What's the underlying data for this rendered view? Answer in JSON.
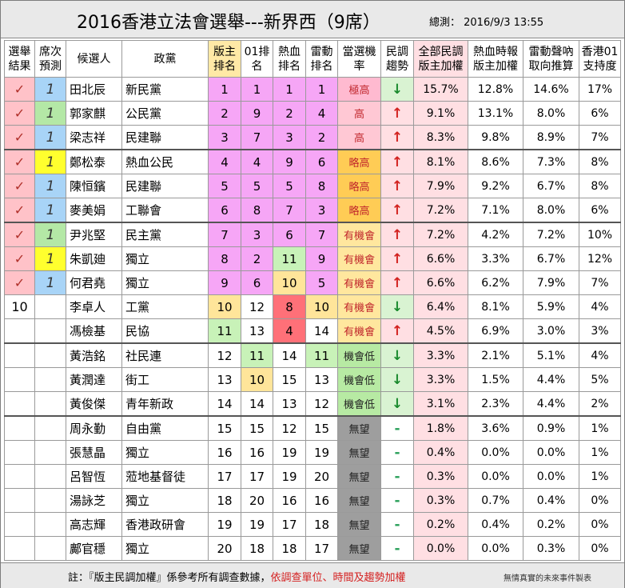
{
  "title": "2016香港立法會選舉---新界西（9席）",
  "subtitle": "總測： 2016/9/3 13:55",
  "headers": [
    "選舉結果",
    "席次預測",
    "候選人",
    "政黨",
    "版主排名",
    "01排名",
    "熱血排名",
    "雷動排名",
    "當選機率",
    "民調趨勢",
    "全部民調版主加權",
    "熱血時報版主加權",
    "雷動聲吶取向推算",
    "香港01支持度"
  ],
  "trend_symbols": {
    "up": "↑",
    "down": "↓",
    "flat": "-"
  },
  "colors": {
    "check_bg": "#ffc2c8",
    "seat_blue": "#a8d4f7",
    "seat_green": "#b4e8a6",
    "seat_yellow": "#ffff2e",
    "rank_pink": "#f6a6f6",
    "rank_green": "#c8f2b8",
    "rank_yellow": "#ffe59a",
    "rank_red": "#ff7078",
    "chance_very_high": "#ffbad0",
    "chance_high": "#ffc8d4",
    "chance_slightly_high": "#ffcc55",
    "chance_possible": "#ffe79e",
    "chance_low": "#b7eaa3",
    "chance_none": "#9e9e9e",
    "pct_bg": "#ffdfe3"
  },
  "rows": [
    {
      "result": "✓",
      "seat": "1",
      "seat_c": "blue",
      "name": "田北辰",
      "party": "新民黨",
      "r1": "1",
      "c1": "pink",
      "r2": "1",
      "c2": "pink",
      "r3": "1",
      "c3": "pink",
      "r4": "1",
      "c4": "pink",
      "chance": "極高",
      "ch": "very_high",
      "trend": "down",
      "p1": "15.7%",
      "p2": "12.8%",
      "p3": "14.6%",
      "p4": "17%"
    },
    {
      "result": "✓",
      "seat": "1",
      "seat_c": "green",
      "name": "郭家麒",
      "party": "公民黨",
      "r1": "2",
      "c1": "pink",
      "r2": "9",
      "c2": "pink",
      "r3": "2",
      "c3": "pink",
      "r4": "4",
      "c4": "pink",
      "chance": "高",
      "ch": "high",
      "trend": "up",
      "p1": "9.1%",
      "p2": "13.1%",
      "p3": "8.0%",
      "p4": "6%"
    },
    {
      "result": "✓",
      "seat": "1",
      "seat_c": "blue",
      "name": "梁志祥",
      "party": "民建聯",
      "r1": "3",
      "c1": "pink",
      "r2": "7",
      "c2": "pink",
      "r3": "3",
      "c3": "pink",
      "r4": "2",
      "c4": "pink",
      "chance": "高",
      "ch": "high",
      "trend": "up",
      "p1": "8.3%",
      "p2": "9.8%",
      "p3": "8.9%",
      "p4": "7%"
    },
    {
      "sep": true,
      "result": "✓",
      "seat": "1",
      "seat_c": "yellow",
      "name": "鄭松泰",
      "party": "熱血公民",
      "r1": "4",
      "c1": "pink",
      "r2": "4",
      "c2": "pink",
      "r3": "9",
      "c3": "pink",
      "r4": "6",
      "c4": "pink",
      "chance": "略高",
      "ch": "slightly_high",
      "trend": "up",
      "p1": "8.1%",
      "p2": "8.6%",
      "p3": "7.3%",
      "p4": "8%"
    },
    {
      "result": "✓",
      "seat": "1",
      "seat_c": "blue",
      "name": "陳恒鑌",
      "party": "民建聯",
      "r1": "5",
      "c1": "pink",
      "r2": "5",
      "c2": "pink",
      "r3": "5",
      "c3": "pink",
      "r4": "8",
      "c4": "pink",
      "chance": "略高",
      "ch": "slightly_high",
      "trend": "up",
      "p1": "7.9%",
      "p2": "9.2%",
      "p3": "6.7%",
      "p4": "8%"
    },
    {
      "result": "✓",
      "seat": "1",
      "seat_c": "blue",
      "name": "麥美娟",
      "party": "工聯會",
      "r1": "6",
      "c1": "pink",
      "r2": "8",
      "c2": "pink",
      "r3": "7",
      "c3": "pink",
      "r4": "3",
      "c4": "pink",
      "chance": "略高",
      "ch": "slightly_high",
      "trend": "up",
      "p1": "7.2%",
      "p2": "7.1%",
      "p3": "8.0%",
      "p4": "6%"
    },
    {
      "sep": true,
      "result": "✓",
      "seat": "1",
      "seat_c": "green",
      "name": "尹兆堅",
      "party": "民主黨",
      "r1": "7",
      "c1": "pink",
      "r2": "3",
      "c2": "pink",
      "r3": "6",
      "c3": "pink",
      "r4": "7",
      "c4": "pink",
      "chance": "有機會",
      "ch": "possible",
      "trend": "up",
      "p1": "7.2%",
      "p2": "4.2%",
      "p3": "7.2%",
      "p4": "10%"
    },
    {
      "result": "✓",
      "seat": "1",
      "seat_c": "yellow",
      "name": "朱凱廸",
      "party": "獨立",
      "r1": "8",
      "c1": "pink",
      "r2": "2",
      "c2": "pink",
      "r3": "11",
      "c3": "green",
      "r4": "9",
      "c4": "pink",
      "chance": "有機會",
      "ch": "possible",
      "trend": "up",
      "p1": "6.6%",
      "p2": "3.3%",
      "p3": "6.7%",
      "p4": "12%"
    },
    {
      "result": "✓",
      "seat": "1",
      "seat_c": "blue",
      "name": "何君堯",
      "party": "獨立",
      "r1": "9",
      "c1": "pink",
      "r2": "6",
      "c2": "pink",
      "r3": "10",
      "c3": "yellow",
      "r4": "5",
      "c4": "pink",
      "chance": "有機會",
      "ch": "possible",
      "trend": "up",
      "p1": "6.6%",
      "p2": "6.2%",
      "p3": "7.9%",
      "p4": "7%"
    },
    {
      "result": "10",
      "seat": "",
      "seat_c": "none",
      "name": "李卓人",
      "party": "工黨",
      "r1": "10",
      "c1": "yellow",
      "r2": "12",
      "c2": "none",
      "r3": "8",
      "c3": "red",
      "r4": "10",
      "c4": "yellow",
      "chance": "有機會",
      "ch": "possible",
      "trend": "down",
      "p1": "6.4%",
      "p2": "8.1%",
      "p3": "5.9%",
      "p4": "4%"
    },
    {
      "result": "",
      "seat": "",
      "seat_c": "none",
      "name": "馮檢基",
      "party": "民協",
      "r1": "11",
      "c1": "green",
      "r2": "13",
      "c2": "none",
      "r3": "4",
      "c3": "red",
      "r4": "14",
      "c4": "none",
      "chance": "有機會",
      "ch": "possible",
      "trend": "up",
      "p1": "4.5%",
      "p2": "6.9%",
      "p3": "3.0%",
      "p4": "3%"
    },
    {
      "sep": true,
      "result": "",
      "seat": "",
      "seat_c": "none",
      "name": "黃浩銘",
      "party": "社民連",
      "r1": "12",
      "c1": "none",
      "r2": "11",
      "c2": "green",
      "r3": "14",
      "c3": "none",
      "r4": "11",
      "c4": "green",
      "chance": "機會低",
      "ch": "low",
      "trend": "down",
      "p1": "3.3%",
      "p2": "2.1%",
      "p3": "5.1%",
      "p4": "4%"
    },
    {
      "result": "",
      "seat": "",
      "seat_c": "none",
      "name": "黃潤達",
      "party": "街工",
      "r1": "13",
      "c1": "none",
      "r2": "10",
      "c2": "yellow",
      "r3": "15",
      "c3": "none",
      "r4": "13",
      "c4": "none",
      "chance": "機會低",
      "ch": "low",
      "trend": "down",
      "p1": "3.3%",
      "p2": "1.5%",
      "p3": "4.4%",
      "p4": "5%"
    },
    {
      "result": "",
      "seat": "",
      "seat_c": "none",
      "name": "黃俊傑",
      "party": "青年新政",
      "r1": "14",
      "c1": "none",
      "r2": "14",
      "c2": "none",
      "r3": "13",
      "c3": "none",
      "r4": "12",
      "c4": "none",
      "chance": "機會低",
      "ch": "low",
      "trend": "down",
      "p1": "3.1%",
      "p2": "2.3%",
      "p3": "4.4%",
      "p4": "2%"
    },
    {
      "sep": true,
      "result": "",
      "seat": "",
      "seat_c": "none",
      "name": "周永勤",
      "party": "自由黨",
      "r1": "15",
      "c1": "none",
      "r2": "15",
      "c2": "none",
      "r3": "12",
      "c3": "none",
      "r4": "15",
      "c4": "none",
      "chance": "無望",
      "ch": "none",
      "trend": "flat",
      "p1": "1.8%",
      "p2": "3.6%",
      "p3": "0.9%",
      "p4": "1%"
    },
    {
      "result": "",
      "seat": "",
      "seat_c": "none",
      "name": "張慧晶",
      "party": "獨立",
      "r1": "16",
      "c1": "none",
      "r2": "16",
      "c2": "none",
      "r3": "19",
      "c3": "none",
      "r4": "19",
      "c4": "none",
      "chance": "無望",
      "ch": "none",
      "trend": "flat",
      "p1": "0.4%",
      "p2": "0.0%",
      "p3": "0.0%",
      "p4": "1%"
    },
    {
      "result": "",
      "seat": "",
      "seat_c": "none",
      "name": "呂智恆",
      "party": "蒞地基督徒",
      "r1": "17",
      "c1": "none",
      "r2": "17",
      "c2": "none",
      "r3": "19",
      "c3": "none",
      "r4": "20",
      "c4": "none",
      "chance": "無望",
      "ch": "none",
      "trend": "flat",
      "p1": "0.3%",
      "p2": "0.0%",
      "p3": "0.0%",
      "p4": "1%"
    },
    {
      "result": "",
      "seat": "",
      "seat_c": "none",
      "name": "湯詠芝",
      "party": "獨立",
      "r1": "18",
      "c1": "none",
      "r2": "20",
      "c2": "none",
      "r3": "16",
      "c3": "none",
      "r4": "16",
      "c4": "none",
      "chance": "無望",
      "ch": "none",
      "trend": "flat",
      "p1": "0.3%",
      "p2": "0.7%",
      "p3": "0.4%",
      "p4": "0%"
    },
    {
      "result": "",
      "seat": "",
      "seat_c": "none",
      "name": "高志輝",
      "party": "香港政研會",
      "r1": "19",
      "c1": "none",
      "r2": "19",
      "c2": "none",
      "r3": "17",
      "c3": "none",
      "r4": "18",
      "c4": "none",
      "chance": "無望",
      "ch": "none",
      "trend": "flat",
      "p1": "0.2%",
      "p2": "0.4%",
      "p3": "0.2%",
      "p4": "0%"
    },
    {
      "result": "",
      "seat": "",
      "seat_c": "none",
      "name": "鄺官穩",
      "party": "獨立",
      "r1": "20",
      "c1": "none",
      "r2": "18",
      "c2": "none",
      "r3": "18",
      "c3": "none",
      "r4": "17",
      "c4": "none",
      "chance": "無望",
      "ch": "none",
      "trend": "flat",
      "p1": "0.0%",
      "p2": "0.0%",
      "p3": "0.3%",
      "p4": "0%"
    }
  ],
  "footer": {
    "note_prefix": "註：『版主民調加權』係參考所有調查數據，",
    "note_red": "依調查單位、時間及趨勢加權",
    "credit": "無情真實的未來事件製表"
  }
}
